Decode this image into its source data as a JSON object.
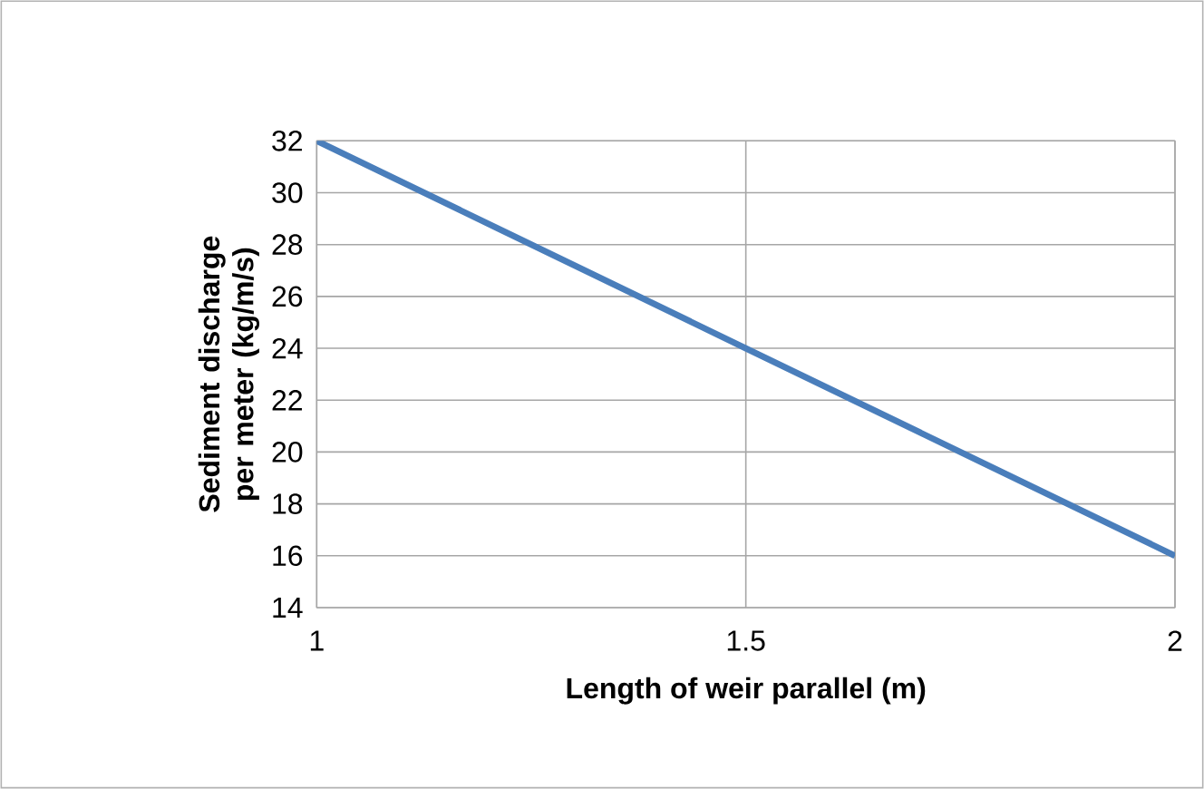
{
  "chart_data": {
    "type": "line",
    "xlabel": "Length of weir parallel (m)",
    "ylabel": "Sediment discharge per meter (kg/m/s)",
    "x": [
      1,
      1.5,
      2
    ],
    "series": [
      {
        "color": "#4a7ebb",
        "values": [
          32,
          24,
          16
        ]
      }
    ],
    "xlim": [
      1,
      2
    ],
    "xticks": [
      1,
      1.5,
      2
    ],
    "ylim": [
      14,
      32
    ],
    "yticks": [
      14,
      16,
      18,
      20,
      22,
      24,
      26,
      28,
      30,
      32
    ],
    "grid": true,
    "marker": "none",
    "line_style": "solid"
  }
}
